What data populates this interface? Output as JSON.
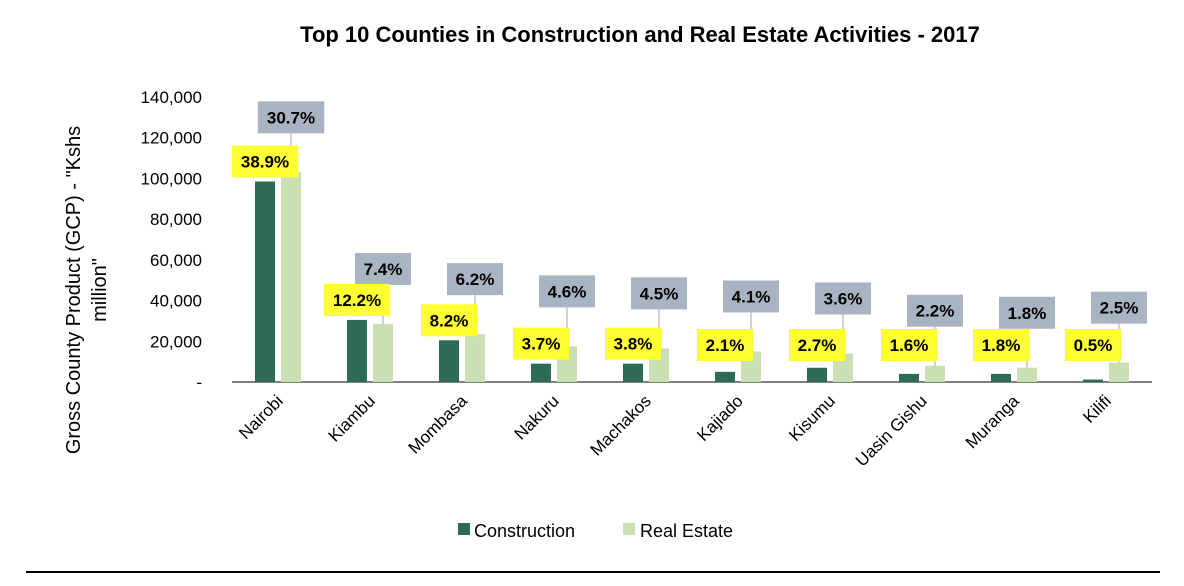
{
  "chart_data": {
    "type": "bar",
    "title": "Top 10 Counties in Construction and Real Estate Activities - 2017",
    "ylabel_lines": [
      "Gross County Product (GCP)  - \"Kshs",
      "million\""
    ],
    "xlabel": "",
    "ylim": [
      0,
      140000
    ],
    "yticks": [
      0,
      20000,
      40000,
      60000,
      80000,
      100000,
      120000,
      140000
    ],
    "ytick_labels": [
      "-",
      "20,000",
      "40,000",
      "60,000",
      "80,000",
      "100,000",
      "120,000",
      "140,000"
    ],
    "grid": false,
    "legend_position": "bottom",
    "categories": [
      "Nairobi",
      "Kiambu",
      "Mombasa",
      "Nakuru",
      "Machakos",
      "Kajiado",
      "Kisumu",
      "Uasin Gishu",
      "Muranga",
      "Kilifi"
    ],
    "series": [
      {
        "name": "Construction",
        "color": "#2e6b56",
        "label_bg": "#ffff33",
        "values": [
          98500,
          30500,
          20500,
          9000,
          9000,
          5000,
          7000,
          4000,
          4000,
          1200
        ],
        "labels": [
          "38.9%",
          "12.2%",
          "8.2%",
          "3.7%",
          "3.8%",
          "2.1%",
          "2.7%",
          "1.6%",
          "1.8%",
          "0.5%"
        ]
      },
      {
        "name": "Real Estate",
        "color": "#c9dfb4",
        "label_bg": "#a9b4c2",
        "values": [
          103000,
          28500,
          23500,
          17500,
          16500,
          15000,
          14000,
          8000,
          7000,
          9500
        ],
        "labels": [
          "30.7%",
          "7.4%",
          "6.2%",
          "4.6%",
          "4.5%",
          "4.1%",
          "3.6%",
          "2.2%",
          "1.8%",
          "2.5%"
        ]
      }
    ]
  }
}
